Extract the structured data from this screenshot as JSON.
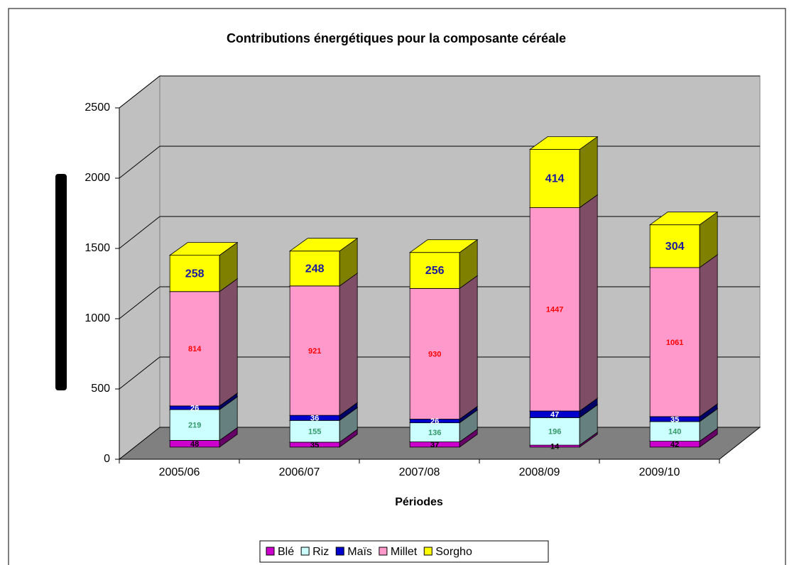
{
  "chart_data": {
    "type": "bar3d_stacked",
    "title": "Contributions énergétiques pour la composante céréale",
    "x_label": "Périodes",
    "categories": [
      "2005/06",
      "2006/07",
      "2007/08",
      "2008/09",
      "2009/10"
    ],
    "series": [
      {
        "name": "Blé",
        "color": "#cc00cc",
        "label_color": "#000000",
        "values": [
          48,
          35,
          37,
          14,
          42
        ]
      },
      {
        "name": "Riz",
        "color": "#ccffff",
        "label_color": "#339966",
        "values": [
          219,
          155,
          136,
          196,
          140
        ]
      },
      {
        "name": "Maïs",
        "color": "#0000cc",
        "label_color": "#ffffff",
        "values": [
          26,
          36,
          26,
          47,
          35
        ]
      },
      {
        "name": "Millet",
        "color": "#ff99cc",
        "label_color": "#ff0000",
        "values": [
          814,
          921,
          930,
          1447,
          1061
        ]
      },
      {
        "name": "Sorgho",
        "color": "#ffff00",
        "label_color": "#1a1aa0",
        "values": [
          258,
          248,
          256,
          414,
          304
        ]
      }
    ],
    "ylim": [
      0,
      2500
    ],
    "yticks": [
      0,
      500,
      1000,
      1500,
      2000,
      2500
    ],
    "grid": true,
    "legend": "bottom"
  }
}
